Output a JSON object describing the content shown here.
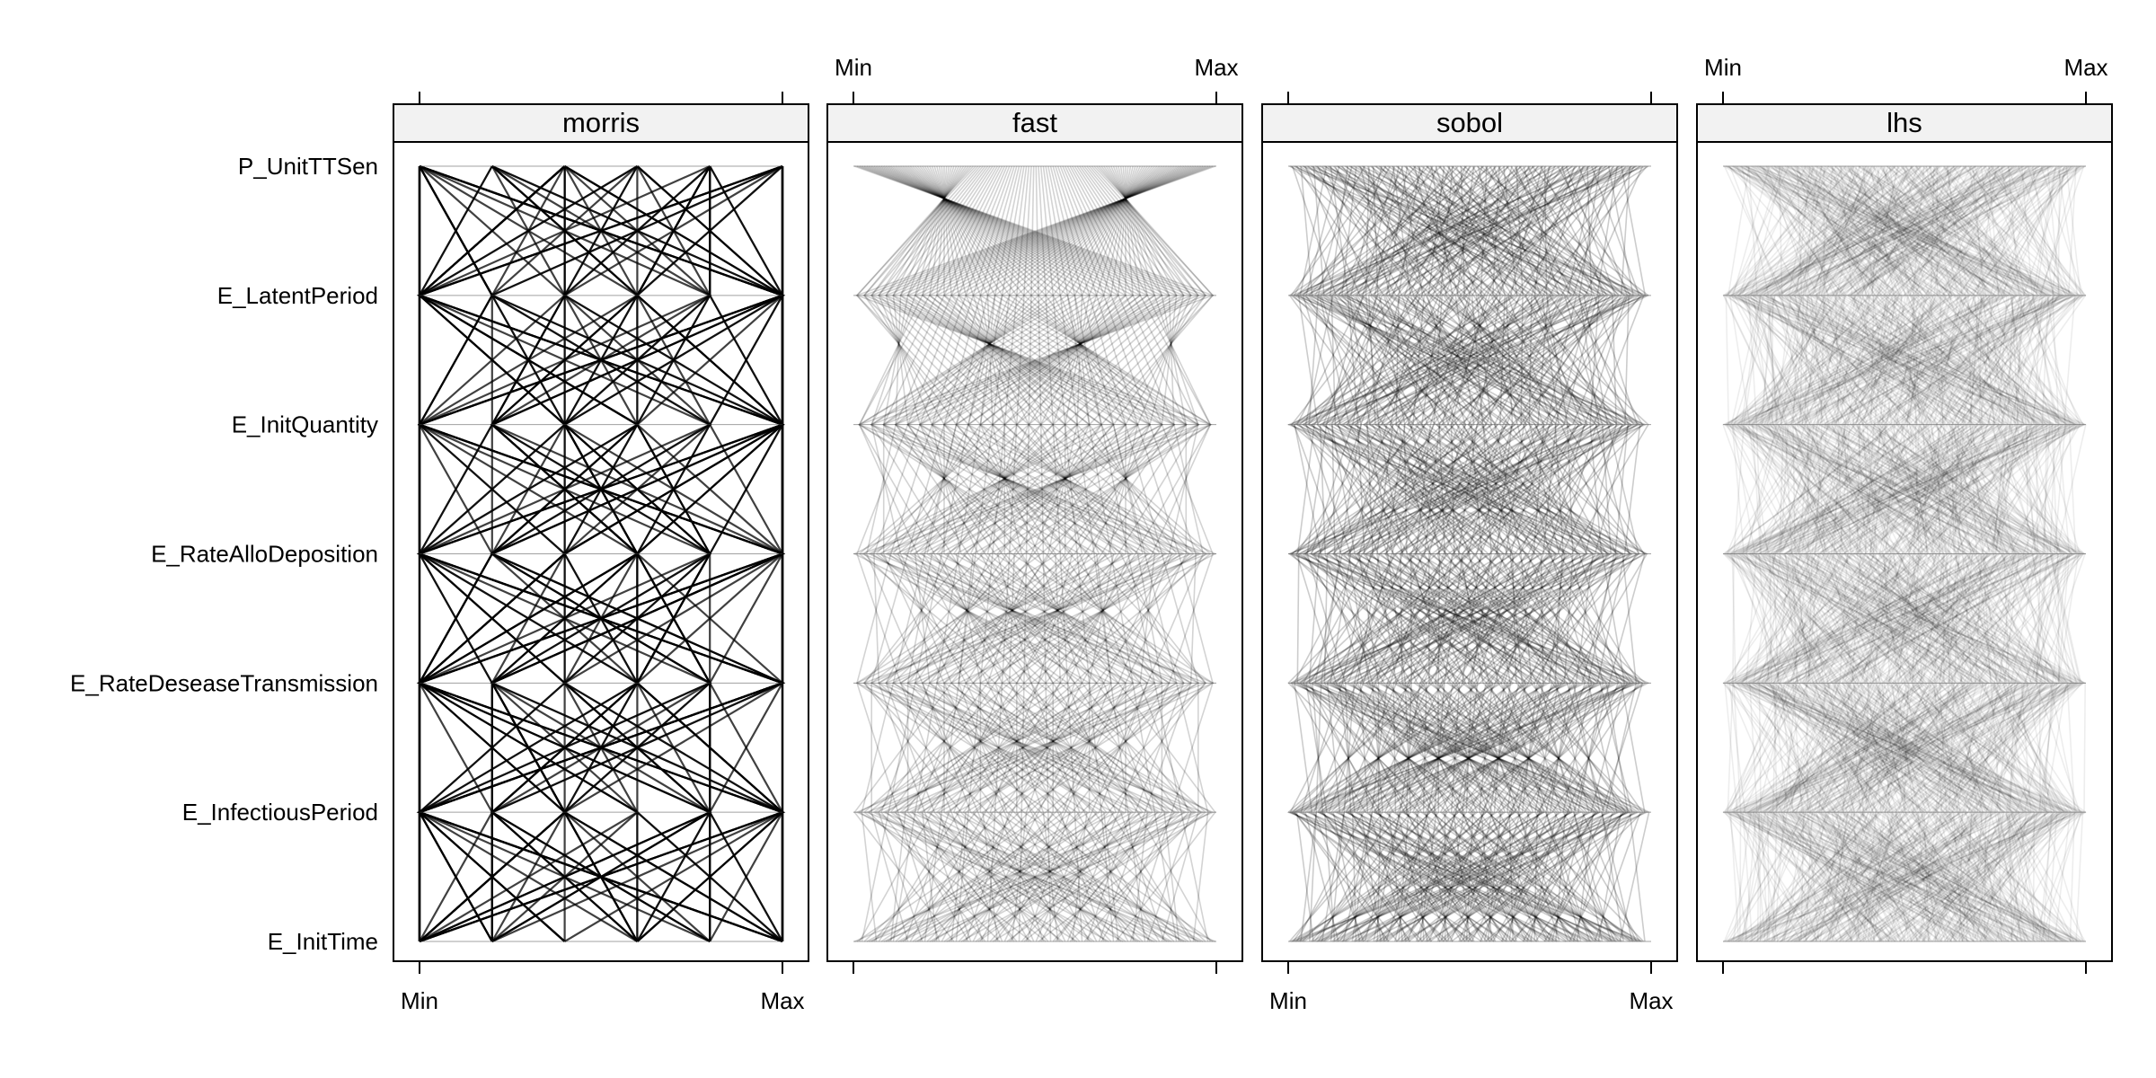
{
  "chart_data": {
    "type": "parallel_coordinates",
    "variables": [
      "P_UnitTTSen",
      "E_LatentPeriod",
      "E_InitQuantity",
      "E_RateAlloDeposition",
      "E_RateDeseaseTransmission",
      "E_InfectiousPeriod",
      "E_InitTime"
    ],
    "scale_min_label": "Min",
    "scale_max_label": "Max",
    "panels": [
      {
        "name": "morris",
        "design": "grid",
        "levels": 6,
        "samples": 70,
        "line_opacity": 0.75,
        "axis_labels_side": "bottom"
      },
      {
        "name": "fast",
        "design": "sinusoidal",
        "samples": 300,
        "line_opacity": 0.09,
        "axis_labels_side": "top"
      },
      {
        "name": "sobol",
        "design": "quasi-random",
        "samples": 220,
        "line_opacity": 0.2,
        "axis_labels_side": "bottom"
      },
      {
        "name": "lhs",
        "design": "latin-hypercube",
        "samples": 420,
        "line_opacity": 0.07,
        "axis_labels_side": "top"
      }
    ]
  }
}
